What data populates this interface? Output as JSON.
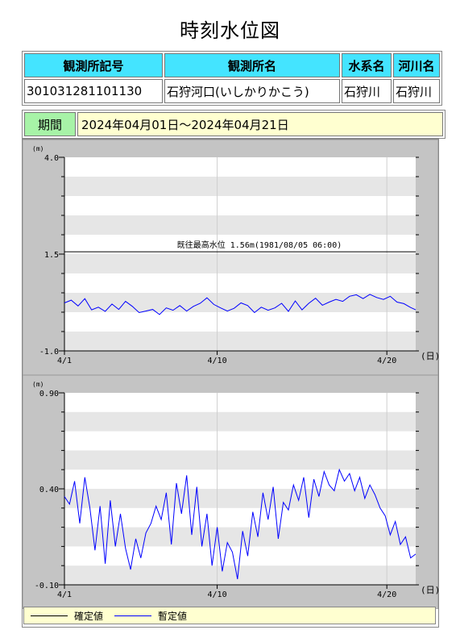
{
  "page": {
    "title": "時刻水位図"
  },
  "station_table": {
    "headers": [
      "観測所記号",
      "観測所名",
      "水系名",
      "河川名"
    ],
    "values": [
      "301031281101130",
      "石狩河口(いしかりかこう)",
      "石狩川",
      "石狩川"
    ]
  },
  "period": {
    "label": "期間",
    "value": "2024年04月01日～2024年04月21日"
  },
  "legend": {
    "confirmed": "確定値",
    "provisional": "暫定値"
  },
  "colors": {
    "confirmed": "#000000",
    "provisional": "#0000ff"
  },
  "chart_data": [
    {
      "type": "line",
      "unit_label": "(m)",
      "x_unit_label": "(日)",
      "xlim": [
        1,
        21.7
      ],
      "ylim": [
        -1.0,
        4.0
      ],
      "y_ticks": [
        {
          "value": 4.0,
          "label": "4.0"
        },
        {
          "value": 1.5,
          "label": "1.5"
        },
        {
          "value": -1.0,
          "label": "-1.0"
        }
      ],
      "x_ticks": [
        {
          "value": 1,
          "label": "4/1"
        },
        {
          "value": 10,
          "label": "4/10"
        },
        {
          "value": 20,
          "label": "4/20"
        }
      ],
      "reference_line": {
        "value": 1.56,
        "label": "既往最高水位 1.56m(1981/08/05 06:00)"
      },
      "series": [
        {
          "name": "暫定値",
          "x": [
            1.0,
            1.4,
            1.8,
            2.2,
            2.6,
            3.0,
            3.4,
            3.8,
            4.2,
            4.6,
            5.0,
            5.4,
            5.8,
            6.2,
            6.6,
            7.0,
            7.4,
            7.8,
            8.2,
            8.6,
            9.0,
            9.4,
            9.8,
            10.2,
            10.6,
            11.0,
            11.4,
            11.8,
            12.2,
            12.6,
            13.0,
            13.4,
            13.8,
            14.2,
            14.6,
            15.0,
            15.4,
            15.8,
            16.2,
            16.6,
            17.0,
            17.4,
            17.8,
            18.2,
            18.6,
            19.0,
            19.4,
            19.8,
            20.2,
            20.6,
            21.0,
            21.4,
            21.7
          ],
          "y": [
            0.24,
            0.31,
            0.16,
            0.35,
            0.06,
            0.13,
            0.02,
            0.21,
            0.07,
            0.28,
            0.15,
            -0.01,
            0.03,
            0.07,
            -0.06,
            0.11,
            0.05,
            0.17,
            0.03,
            0.15,
            0.23,
            0.37,
            0.2,
            0.11,
            0.03,
            0.1,
            0.24,
            0.17,
            -0.01,
            0.13,
            0.05,
            0.11,
            0.23,
            0.02,
            0.29,
            0.06,
            0.23,
            0.36,
            0.18,
            0.26,
            0.33,
            0.28,
            0.41,
            0.45,
            0.35,
            0.46,
            0.38,
            0.33,
            0.41,
            0.26,
            0.22,
            0.12,
            0.06
          ]
        }
      ]
    },
    {
      "type": "line",
      "unit_label": "(m)",
      "x_unit_label": "(日)",
      "xlim": [
        1,
        21.7
      ],
      "ylim": [
        -0.1,
        0.9
      ],
      "y_ticks": [
        {
          "value": 0.9,
          "label": "0.90"
        },
        {
          "value": 0.4,
          "label": "0.40"
        },
        {
          "value": -0.1,
          "label": "-0.10"
        }
      ],
      "x_ticks": [
        {
          "value": 1,
          "label": "4/1"
        },
        {
          "value": 10,
          "label": "4/10"
        },
        {
          "value": 20,
          "label": "4/20"
        }
      ],
      "series": [
        {
          "name": "暫定値",
          "x": [
            1.0,
            1.3,
            1.6,
            1.9,
            2.2,
            2.5,
            2.8,
            3.1,
            3.4,
            3.7,
            4.0,
            4.3,
            4.6,
            4.9,
            5.2,
            5.5,
            5.8,
            6.1,
            6.4,
            6.7,
            7.0,
            7.3,
            7.6,
            7.9,
            8.2,
            8.5,
            8.8,
            9.1,
            9.4,
            9.7,
            10.0,
            10.3,
            10.6,
            10.9,
            11.2,
            11.5,
            11.8,
            12.1,
            12.4,
            12.7,
            13.0,
            13.3,
            13.6,
            13.9,
            14.2,
            14.5,
            14.8,
            15.1,
            15.4,
            15.7,
            16.0,
            16.3,
            16.6,
            16.9,
            17.2,
            17.5,
            17.8,
            18.1,
            18.4,
            18.7,
            19.0,
            19.3,
            19.6,
            19.9,
            20.2,
            20.5,
            20.8,
            21.1,
            21.4,
            21.7
          ],
          "y": [
            0.36,
            0.32,
            0.44,
            0.22,
            0.46,
            0.3,
            0.08,
            0.31,
            0.01,
            0.34,
            0.1,
            0.27,
            0.09,
            -0.02,
            0.14,
            0.04,
            0.17,
            0.22,
            0.31,
            0.24,
            0.38,
            0.11,
            0.43,
            0.27,
            0.47,
            0.16,
            0.41,
            0.1,
            0.27,
            0.0,
            0.2,
            -0.03,
            0.12,
            0.07,
            -0.07,
            0.18,
            0.05,
            0.28,
            0.15,
            0.38,
            0.24,
            0.41,
            0.14,
            0.33,
            0.29,
            0.42,
            0.34,
            0.46,
            0.25,
            0.45,
            0.36,
            0.49,
            0.42,
            0.39,
            0.5,
            0.44,
            0.48,
            0.39,
            0.46,
            0.35,
            0.42,
            0.37,
            0.3,
            0.26,
            0.16,
            0.23,
            0.11,
            0.15,
            0.04,
            0.06
          ]
        }
      ]
    }
  ]
}
